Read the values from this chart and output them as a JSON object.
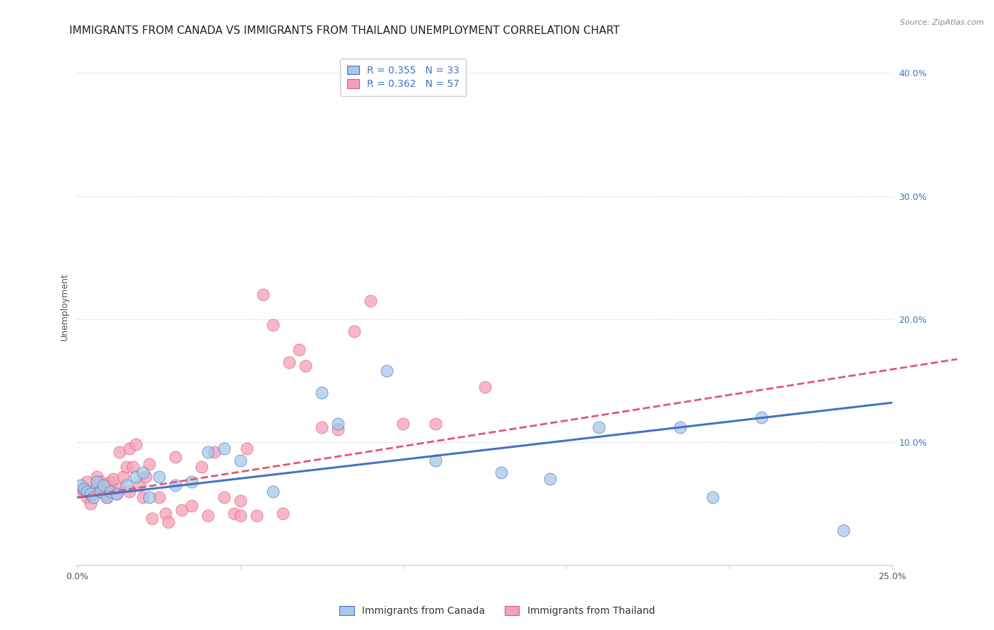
{
  "title": "IMMIGRANTS FROM CANADA VS IMMIGRANTS FROM THAILAND UNEMPLOYMENT CORRELATION CHART",
  "source": "Source: ZipAtlas.com",
  "xlabel": "",
  "ylabel": "Unemployment",
  "xlim": [
    0,
    0.25
  ],
  "ylim": [
    0,
    0.42
  ],
  "yticks": [
    0.0,
    0.1,
    0.2,
    0.3,
    0.4
  ],
  "ytick_labels": [
    "",
    "10.0%",
    "20.0%",
    "30.0%",
    "40.0%"
  ],
  "xtick_labels_show": [
    "0.0%",
    "25.0%"
  ],
  "xtick_positions_show": [
    0.0,
    0.25
  ],
  "xtick_minor": [
    0.05,
    0.1,
    0.15,
    0.2
  ],
  "canada_R": 0.355,
  "canada_N": 33,
  "thailand_R": 0.362,
  "thailand_N": 57,
  "canada_color": "#a8c8e8",
  "canada_line_color": "#4472c4",
  "thailand_color": "#f4a0b8",
  "thailand_line_color": "#e05878",
  "background_color": "#ffffff",
  "grid_color": "#e0e0e0",
  "canada_x": [
    0.001,
    0.002,
    0.003,
    0.004,
    0.005,
    0.006,
    0.007,
    0.008,
    0.009,
    0.01,
    0.012,
    0.015,
    0.018,
    0.02,
    0.022,
    0.025,
    0.03,
    0.035,
    0.04,
    0.045,
    0.05,
    0.06,
    0.075,
    0.08,
    0.095,
    0.11,
    0.13,
    0.145,
    0.16,
    0.185,
    0.195,
    0.21,
    0.235
  ],
  "canada_y": [
    0.065,
    0.062,
    0.06,
    0.058,
    0.055,
    0.068,
    0.06,
    0.065,
    0.055,
    0.06,
    0.058,
    0.065,
    0.072,
    0.075,
    0.055,
    0.072,
    0.065,
    0.068,
    0.092,
    0.095,
    0.085,
    0.06,
    0.14,
    0.115,
    0.158,
    0.085,
    0.075,
    0.07,
    0.112,
    0.112,
    0.055,
    0.12,
    0.028
  ],
  "thailand_x": [
    0.001,
    0.002,
    0.003,
    0.003,
    0.004,
    0.005,
    0.006,
    0.006,
    0.007,
    0.007,
    0.008,
    0.009,
    0.009,
    0.01,
    0.011,
    0.012,
    0.013,
    0.013,
    0.014,
    0.015,
    0.016,
    0.016,
    0.017,
    0.018,
    0.019,
    0.02,
    0.021,
    0.022,
    0.023,
    0.025,
    0.027,
    0.028,
    0.03,
    0.032,
    0.035,
    0.038,
    0.04,
    0.042,
    0.045,
    0.048,
    0.05,
    0.05,
    0.052,
    0.055,
    0.057,
    0.06,
    0.063,
    0.065,
    0.068,
    0.07,
    0.075,
    0.08,
    0.085,
    0.09,
    0.1,
    0.11,
    0.125
  ],
  "thailand_y": [
    0.062,
    0.06,
    0.055,
    0.068,
    0.05,
    0.058,
    0.065,
    0.072,
    0.06,
    0.068,
    0.062,
    0.055,
    0.065,
    0.068,
    0.07,
    0.058,
    0.062,
    0.092,
    0.072,
    0.08,
    0.06,
    0.095,
    0.08,
    0.098,
    0.065,
    0.055,
    0.072,
    0.082,
    0.038,
    0.055,
    0.042,
    0.035,
    0.088,
    0.045,
    0.048,
    0.08,
    0.04,
    0.092,
    0.055,
    0.042,
    0.04,
    0.052,
    0.095,
    0.04,
    0.22,
    0.195,
    0.042,
    0.165,
    0.175,
    0.162,
    0.112,
    0.11,
    0.19,
    0.215,
    0.115,
    0.115,
    0.145
  ],
  "legend_label_canada": "Immigrants from Canada",
  "legend_label_thailand": "Immigrants from Thailand",
  "title_fontsize": 11,
  "axis_label_fontsize": 9,
  "tick_fontsize": 9,
  "legend_fontsize": 10,
  "canada_trend_start_y": 0.055,
  "canada_trend_end_y": 0.132,
  "thailand_trend_start_y": 0.055,
  "thailand_trend_end_y": 0.155
}
